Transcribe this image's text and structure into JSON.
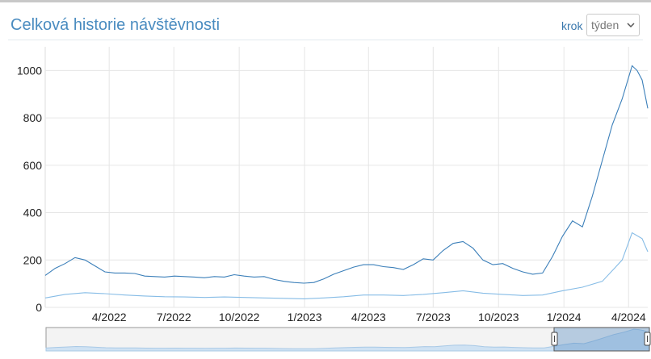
{
  "header": {
    "title": "Celková historie návštěvnosti",
    "step_label": "krok",
    "step_value": "týden"
  },
  "colors": {
    "series_dark": "#3b7fb9",
    "series_light": "#86bce6",
    "title": "#4a8cc0",
    "grid": "#e6e6e6"
  },
  "chart_data": {
    "type": "line",
    "title": "",
    "xlabel": "",
    "ylabel": "",
    "ylim": [
      0,
      1100
    ],
    "xlim": [
      "2022-01-01",
      "2024-04-28"
    ],
    "y_ticks": [
      0,
      200,
      400,
      600,
      800,
      1000
    ],
    "x_ticks": [
      {
        "date": "2022-04-01",
        "label": "4/2022"
      },
      {
        "date": "2022-07-01",
        "label": "7/2022"
      },
      {
        "date": "2022-10-01",
        "label": "10/2022"
      },
      {
        "date": "2023-01-01",
        "label": "1/2023"
      },
      {
        "date": "2023-04-01",
        "label": "4/2023"
      },
      {
        "date": "2023-07-01",
        "label": "7/2023"
      },
      {
        "date": "2023-10-01",
        "label": "10/2023"
      },
      {
        "date": "2024-01-01",
        "label": "1/2024"
      },
      {
        "date": "2024-04-01",
        "label": "4/2024"
      }
    ],
    "grid": true,
    "legend": "none",
    "navigator": true,
    "series": [
      {
        "values": [
          [
            "2022-01-01",
            135
          ],
          [
            "2022-01-15",
            165
          ],
          [
            "2022-01-29",
            185
          ],
          [
            "2022-02-12",
            210
          ],
          [
            "2022-02-26",
            200
          ],
          [
            "2022-03-12",
            175
          ],
          [
            "2022-03-26",
            150
          ],
          [
            "2022-04-09",
            145
          ],
          [
            "2022-04-23",
            145
          ],
          [
            "2022-05-07",
            143
          ],
          [
            "2022-05-21",
            132
          ],
          [
            "2022-06-04",
            130
          ],
          [
            "2022-06-18",
            128
          ],
          [
            "2022-07-02",
            132
          ],
          [
            "2022-07-16",
            130
          ],
          [
            "2022-07-30",
            128
          ],
          [
            "2022-08-13",
            125
          ],
          [
            "2022-08-27",
            130
          ],
          [
            "2022-09-10",
            128
          ],
          [
            "2022-09-24",
            138
          ],
          [
            "2022-10-08",
            132
          ],
          [
            "2022-10-22",
            128
          ],
          [
            "2022-11-05",
            130
          ],
          [
            "2022-11-19",
            118
          ],
          [
            "2022-12-03",
            110
          ],
          [
            "2022-12-17",
            105
          ],
          [
            "2022-12-31",
            102
          ],
          [
            "2023-01-14",
            105
          ],
          [
            "2023-01-28",
            120
          ],
          [
            "2023-02-11",
            140
          ],
          [
            "2023-02-25",
            155
          ],
          [
            "2023-03-11",
            170
          ],
          [
            "2023-03-25",
            180
          ],
          [
            "2023-04-08",
            180
          ],
          [
            "2023-04-22",
            172
          ],
          [
            "2023-05-06",
            168
          ],
          [
            "2023-05-20",
            160
          ],
          [
            "2023-06-03",
            180
          ],
          [
            "2023-06-17",
            205
          ],
          [
            "2023-07-01",
            200
          ],
          [
            "2023-07-15",
            240
          ],
          [
            "2023-07-29",
            270
          ],
          [
            "2023-08-12",
            278
          ],
          [
            "2023-08-26",
            250
          ],
          [
            "2023-09-09",
            200
          ],
          [
            "2023-09-23",
            180
          ],
          [
            "2023-10-07",
            185
          ],
          [
            "2023-10-21",
            165
          ],
          [
            "2023-11-04",
            150
          ],
          [
            "2023-11-18",
            140
          ],
          [
            "2023-12-02",
            145
          ],
          [
            "2023-12-16",
            215
          ],
          [
            "2023-12-30",
            300
          ],
          [
            "2024-01-13",
            365
          ],
          [
            "2024-01-27",
            340
          ],
          [
            "2024-02-10",
            470
          ],
          [
            "2024-02-24",
            620
          ],
          [
            "2024-03-09",
            770
          ],
          [
            "2024-03-23",
            880
          ],
          [
            "2024-04-06",
            1020
          ],
          [
            "2024-04-13",
            1000
          ],
          [
            "2024-04-20",
            960
          ],
          [
            "2024-04-28",
            840
          ]
        ]
      },
      {
        "values": [
          [
            "2022-01-01",
            40
          ],
          [
            "2022-01-29",
            55
          ],
          [
            "2022-02-26",
            62
          ],
          [
            "2022-03-26",
            58
          ],
          [
            "2022-04-23",
            52
          ],
          [
            "2022-05-21",
            48
          ],
          [
            "2022-06-18",
            45
          ],
          [
            "2022-07-16",
            44
          ],
          [
            "2022-08-13",
            42
          ],
          [
            "2022-09-10",
            44
          ],
          [
            "2022-10-08",
            42
          ],
          [
            "2022-11-05",
            40
          ],
          [
            "2022-12-03",
            38
          ],
          [
            "2022-12-31",
            36
          ],
          [
            "2023-01-28",
            40
          ],
          [
            "2023-02-25",
            45
          ],
          [
            "2023-03-25",
            52
          ],
          [
            "2023-04-22",
            52
          ],
          [
            "2023-05-20",
            50
          ],
          [
            "2023-06-17",
            55
          ],
          [
            "2023-07-15",
            62
          ],
          [
            "2023-08-12",
            70
          ],
          [
            "2023-09-09",
            60
          ],
          [
            "2023-10-07",
            55
          ],
          [
            "2023-11-04",
            50
          ],
          [
            "2023-12-02",
            52
          ],
          [
            "2023-12-30",
            70
          ],
          [
            "2024-01-27",
            85
          ],
          [
            "2024-02-24",
            110
          ],
          [
            "2024-03-23",
            200
          ],
          [
            "2024-04-06",
            315
          ],
          [
            "2024-04-20",
            290
          ],
          [
            "2024-04-28",
            235
          ]
        ]
      }
    ]
  }
}
